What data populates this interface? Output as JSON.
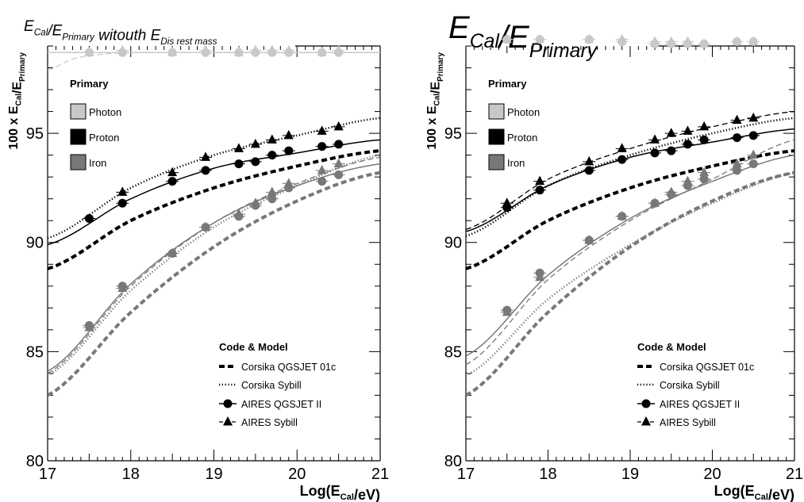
{
  "panels": [
    {
      "title_main": "E",
      "title_parts": [
        [
          "E",
          "Cal"
        ],
        [
          "/E",
          "Primary"
        ],
        [
          " witouth E",
          "Dis rest mass"
        ]
      ],
      "title_size": "small",
      "ylabel": "100 x E_Cal/E_Primary",
      "xlabel": "Log(E_Cal/eV)",
      "xlim": [
        17,
        21
      ],
      "ylim": [
        80,
        99
      ],
      "xticks": [
        "17",
        "18",
        "19",
        "20",
        "21"
      ],
      "yticks": [
        "80",
        "85",
        "90",
        "95"
      ],
      "legend_primary_title": "Primary",
      "legend_primary": [
        "Photon",
        "Proton",
        "Iron"
      ],
      "legend_code_title": "Code & Model",
      "legend_code": [
        "Corsika QGSJET 01c",
        "Corsika Sybill",
        "AIRES QGSJET II",
        "AIRES Sybill"
      ]
    },
    {
      "title_parts": [
        [
          "E",
          "Cal"
        ],
        [
          "/E",
          "Primary"
        ]
      ],
      "title_size": "large",
      "ylabel": "100 x E_Cal/E_Primary",
      "xlabel": "Log(E_Cal/eV)",
      "xlim": [
        17,
        21
      ],
      "ylim": [
        80,
        99
      ],
      "xticks": [
        "17",
        "18",
        "19",
        "20",
        "21"
      ],
      "yticks": [
        "80",
        "85",
        "90",
        "95"
      ],
      "legend_primary_title": "Primary",
      "legend_primary": [
        "Photon",
        "Proton",
        "Iron"
      ],
      "legend_code_title": "Code & Model",
      "legend_code": [
        "Corsika QGSJET 01c",
        "Corsika Sybill",
        "AIRES QGSJET II",
        "AIRES Sybill"
      ]
    }
  ],
  "colors": {
    "photon": "#c8c8c8",
    "proton": "#000000",
    "iron": "#787878"
  },
  "chart_data": [
    {
      "type": "scatter",
      "x_points": [
        17.5,
        17.9,
        18.5,
        18.9,
        19.3,
        19.5,
        19.7,
        19.9,
        20.3,
        20.5
      ],
      "series": [
        {
          "name": "Photon AIRES QGSJET II",
          "primary": "photon",
          "marker": "circle",
          "values": [
            98.7,
            98.7,
            98.7,
            98.7,
            98.7,
            98.7,
            98.7,
            98.7,
            98.7,
            98.7
          ]
        },
        {
          "name": "Photon AIRES Sybill",
          "primary": "photon",
          "marker": "triangle",
          "values": [
            98.7,
            98.8,
            98.7,
            98.8,
            98.7,
            98.8,
            98.8,
            98.8,
            98.7,
            98.8
          ]
        },
        {
          "name": "Proton AIRES QGSJET II",
          "primary": "proton",
          "marker": "circle",
          "values": [
            91.1,
            91.8,
            92.8,
            93.3,
            93.6,
            93.7,
            94.0,
            94.2,
            94.4,
            94.5
          ]
        },
        {
          "name": "Proton AIRES Sybill",
          "primary": "proton",
          "marker": "triangle",
          "values": [
            null,
            92.3,
            93.2,
            93.9,
            94.3,
            94.5,
            94.7,
            94.9,
            95.1,
            95.3
          ]
        },
        {
          "name": "Iron AIRES QGSJET II",
          "primary": "iron",
          "marker": "circle",
          "values": [
            86.2,
            88.0,
            89.5,
            90.7,
            91.2,
            91.7,
            92.0,
            92.5,
            92.8,
            93.1
          ]
        },
        {
          "name": "Iron AIRES Sybill",
          "primary": "iron",
          "marker": "triangle",
          "values": [
            86.1,
            87.9,
            89.5,
            90.7,
            91.3,
            91.8,
            92.3,
            92.7,
            93.3,
            93.6
          ]
        }
      ],
      "fit_curves": [
        {
          "primary": "photon",
          "style": "solid",
          "x": [
            17,
            21
          ],
          "y": [
            98.7,
            98.7
          ]
        },
        {
          "primary": "photon",
          "style": "dashed",
          "x": [
            17,
            17.3,
            17.6,
            18,
            21
          ],
          "y": [
            97.9,
            98.4,
            98.6,
            98.7,
            98.7
          ]
        },
        {
          "primary": "proton",
          "style": "solid",
          "x": [
            17,
            18,
            19,
            20,
            21
          ],
          "y": [
            89.9,
            92.0,
            93.4,
            94.1,
            94.7
          ]
        },
        {
          "primary": "proton",
          "style": "dotted",
          "x": [
            17,
            18,
            19,
            20,
            21
          ],
          "y": [
            90.2,
            92.5,
            94.0,
            94.9,
            95.7
          ]
        },
        {
          "primary": "proton",
          "style": "thickdash",
          "x": [
            17,
            18,
            19,
            20,
            21
          ],
          "y": [
            88.8,
            91.0,
            92.5,
            93.5,
            94.2
          ]
        },
        {
          "primary": "iron",
          "style": "solid",
          "x": [
            17,
            18,
            19,
            20,
            21
          ],
          "y": [
            84.1,
            88.1,
            90.9,
            92.6,
            93.6
          ]
        },
        {
          "primary": "iron",
          "style": "dashed",
          "x": [
            17,
            18,
            19,
            20,
            21
          ],
          "y": [
            84.0,
            88.0,
            90.9,
            92.7,
            93.9
          ]
        },
        {
          "primary": "iron",
          "style": "dotted",
          "x": [
            17,
            18,
            19,
            20,
            21
          ],
          "y": [
            83.9,
            87.8,
            90.7,
            92.6,
            94.0
          ]
        },
        {
          "primary": "iron",
          "style": "thickdash",
          "x": [
            17,
            18,
            19,
            20,
            21
          ],
          "y": [
            83.0,
            86.8,
            89.8,
            91.9,
            93.2
          ]
        }
      ]
    },
    {
      "type": "scatter",
      "x_points": [
        17.5,
        17.9,
        18.5,
        18.9,
        19.3,
        19.5,
        19.7,
        19.9,
        20.3,
        20.5
      ],
      "series": [
        {
          "name": "Photon AIRES QGSJET II",
          "primary": "photon",
          "marker": "circle",
          "values": [
            99.3,
            99.3,
            99.3,
            99.2,
            99.1,
            99.1,
            99.1,
            99.1,
            99.2,
            99.2
          ]
        },
        {
          "name": "Photon AIRES Sybill",
          "primary": "photon",
          "marker": "triangle",
          "values": [
            99.3,
            99.3,
            99.3,
            99.3,
            99.2,
            99.2,
            99.2,
            99.1,
            99.2,
            99.2
          ]
        },
        {
          "name": "Proton AIRES QGSJET II",
          "primary": "proton",
          "marker": "circle",
          "values": [
            91.6,
            92.4,
            93.3,
            93.8,
            94.1,
            94.2,
            94.5,
            94.7,
            94.8,
            94.9
          ]
        },
        {
          "name": "Proton AIRES Sybill",
          "primary": "proton",
          "marker": "triangle",
          "values": [
            91.8,
            92.8,
            93.7,
            94.3,
            94.7,
            95.0,
            95.1,
            95.3,
            95.6,
            95.7
          ]
        },
        {
          "name": "Iron AIRES QGSJET II",
          "primary": "iron",
          "marker": "circle",
          "values": [
            86.9,
            88.6,
            90.1,
            91.2,
            91.8,
            92.2,
            92.6,
            92.9,
            93.3,
            93.6
          ]
        },
        {
          "name": "Iron AIRES Sybill",
          "primary": "iron",
          "marker": "triangle",
          "values": [
            86.8,
            88.4,
            90.1,
            91.2,
            91.8,
            92.3,
            92.8,
            93.2,
            93.6,
            94.0
          ]
        }
      ],
      "fit_curves": [
        {
          "primary": "photon",
          "style": "solid",
          "x": [
            17,
            21
          ],
          "y": [
            99.2,
            99.1
          ]
        },
        {
          "primary": "photon",
          "style": "dashed",
          "x": [
            17,
            21
          ],
          "y": [
            99.3,
            99.2
          ]
        },
        {
          "primary": "proton",
          "style": "solid",
          "x": [
            17,
            18,
            19,
            20,
            21
          ],
          "y": [
            90.5,
            92.6,
            93.9,
            94.6,
            95.2
          ]
        },
        {
          "primary": "proton",
          "style": "dashed",
          "x": [
            17,
            18,
            19,
            20,
            21
          ],
          "y": [
            90.6,
            92.9,
            94.3,
            95.3,
            96.0
          ]
        },
        {
          "primary": "proton",
          "style": "dotted",
          "x": [
            17,
            18,
            19,
            20,
            21
          ],
          "y": [
            90.3,
            92.6,
            94.0,
            95.0,
            95.7
          ]
        },
        {
          "primary": "proton",
          "style": "thickdash",
          "x": [
            17,
            18,
            19,
            20,
            21
          ],
          "y": [
            88.8,
            91.0,
            92.5,
            93.5,
            94.2
          ]
        },
        {
          "primary": "iron",
          "style": "solid",
          "x": [
            17,
            18,
            19,
            20,
            21
          ],
          "y": [
            84.8,
            88.5,
            91.1,
            92.8,
            94.0
          ]
        },
        {
          "primary": "iron",
          "style": "dashed",
          "x": [
            17,
            18,
            19,
            20,
            21
          ],
          "y": [
            84.4,
            88.3,
            91.0,
            92.9,
            94.7
          ]
        },
        {
          "primary": "iron",
          "style": "dotted",
          "x": [
            17,
            18,
            19,
            20,
            21
          ],
          "y": [
            83.9,
            87.4,
            89.9,
            91.8,
            93.2
          ]
        },
        {
          "primary": "iron",
          "style": "thickdash",
          "x": [
            17,
            18,
            19,
            20,
            21
          ],
          "y": [
            83.0,
            86.8,
            89.8,
            91.9,
            93.2
          ]
        }
      ]
    }
  ]
}
